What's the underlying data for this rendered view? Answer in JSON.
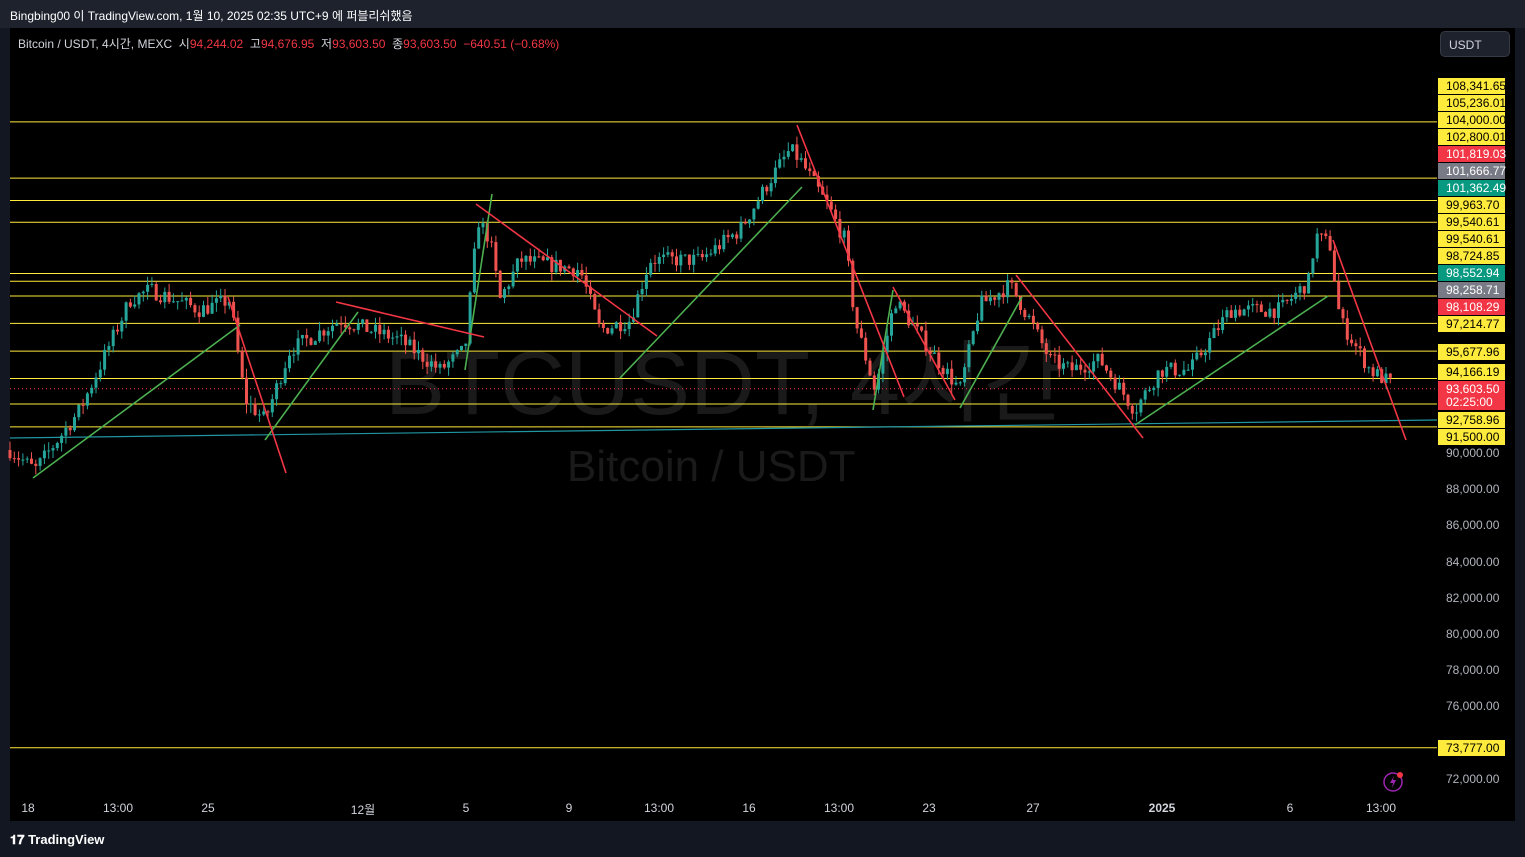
{
  "topbar": {
    "text": "Bingbing00 이 TradingView.com, 1월 10, 2025 02:35 UTC+9 에 퍼블리쉬했음"
  },
  "legend": {
    "symbol": "Bitcoin / USDT, 4시간, MEXC",
    "o_label": "시",
    "o": "94,244.02",
    "h_label": "고",
    "h": "94,676.95",
    "l_label": "저",
    "l": "93,603.50",
    "c_label": "종",
    "c": "93,603.50",
    "change": "−640.51 (−0.68%)"
  },
  "currency": "USDT",
  "watermark": {
    "ticker": "BTCUSDT, 4시간",
    "name": "Bitcoin / USDT"
  },
  "footer": {
    "brand": "TradingView"
  },
  "colors": {
    "up": "#26a69a",
    "down": "#ef5350",
    "level": "#ffeb3b",
    "red": "#f23645",
    "grey": "#787b86",
    "green": "#089981"
  },
  "chart_data": {
    "type": "candlestick",
    "title": "Bitcoin / USDT, 4시간, MEXC",
    "ylim": [
      71500,
      110000
    ],
    "y_ticks": [
      "90,000.00",
      "88,000.00",
      "86,000.00",
      "84,000.00",
      "82,000.00",
      "80,000.00",
      "78,000.00",
      "76,000.00",
      "74,000.00",
      "72,000.00"
    ],
    "x_ticks": [
      "18",
      "13:00",
      "25",
      "12월",
      "5",
      "9",
      "13:00",
      "16",
      "13:00",
      "23",
      "27",
      "2025",
      "6",
      "13:00"
    ],
    "price_path": [
      90221,
      89116,
      92431,
      98508,
      99061,
      97956,
      98508,
      92983,
      91878,
      95746,
      97403,
      96298,
      94641,
      95746,
      102928,
      101823,
      98508,
      100718,
      100166,
      96851,
      97403,
      100718,
      100718,
      102376,
      105138,
      106796,
      106243,
      103481,
      101823,
      97403,
      93536,
      98508,
      95746,
      93536,
      98232,
      99337,
      97403,
      95193,
      94641,
      95193,
      92431,
      94641,
      94641,
      97956,
      97956,
      99613,
      102099,
      101547,
      97403,
      94641,
      93812
    ],
    "levels": [
      108341.65,
      105236.01,
      104000.0,
      102800.01,
      99963.7,
      99540.61,
      98724.85,
      97214.77,
      95677.96,
      94166.19,
      92758.96,
      91500.0,
      73777.0
    ],
    "price_labels": [
      {
        "text": "108,341.65",
        "kind": "level"
      },
      {
        "text": "105,236.01",
        "kind": "level"
      },
      {
        "text": "104,000.00",
        "kind": "level"
      },
      {
        "text": "102,800.01",
        "kind": "level"
      },
      {
        "text": "101,819.03",
        "kind": "red"
      },
      {
        "text": "101,666.77",
        "kind": "grey"
      },
      {
        "text": "101,362.49",
        "kind": "green"
      },
      {
        "text": "99,963.70",
        "kind": "level"
      },
      {
        "text": "99,540.61",
        "kind": "level"
      },
      {
        "text": "99,540.61",
        "kind": "level"
      },
      {
        "text": "98,724.85",
        "kind": "level"
      },
      {
        "text": "98,552.94",
        "kind": "green"
      },
      {
        "text": "98,258.71",
        "kind": "grey"
      },
      {
        "text": "98,108.29",
        "kind": "red"
      },
      {
        "text": "97,214.77",
        "kind": "level"
      },
      {
        "text": "95,677.96",
        "kind": "level"
      },
      {
        "text": "94,166.19",
        "kind": "level"
      },
      {
        "text": "93,603.50",
        "kind": "red"
      },
      {
        "text": "02:25:00",
        "kind": "red"
      },
      {
        "text": "92,758.96",
        "kind": "level"
      },
      {
        "text": "91,500.00",
        "kind": "level"
      },
      {
        "text": "73,777.00",
        "kind": "level"
      }
    ],
    "last_price": 93603.5,
    "countdown": "02:25:00"
  }
}
